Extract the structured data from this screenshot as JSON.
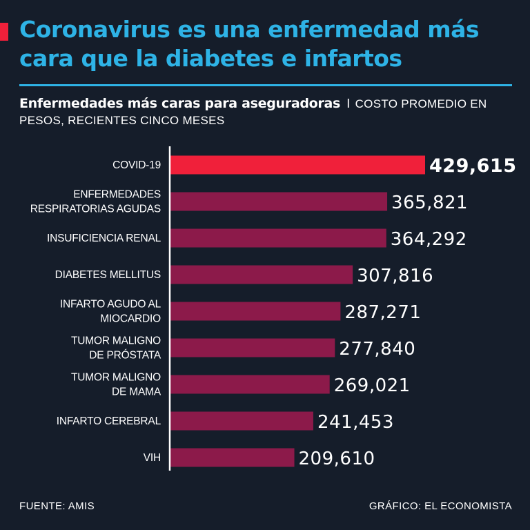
{
  "header": {
    "title": "Coronavirus es una enfermedad más cara que la diabetes e infartos",
    "subtitle_bold": "Enfermedades más caras para aseguradoras",
    "subtitle_separator": "I",
    "subtitle_rest": "COSTO PROMEDIO EN PESOS, RECIENTES CINCO MESES"
  },
  "chart_data": {
    "type": "bar",
    "orientation": "horizontal",
    "title": "Enfermedades más caras para aseguradoras",
    "xlabel": "Costo promedio en pesos",
    "ylabel": "",
    "xlim": [
      0,
      429615
    ],
    "categories": [
      "COVID-19",
      "ENFERMEDADES RESPIRATORIAS AGUDAS",
      "INSUFICIENCIA RENAL",
      "DIABETES MELLITUS",
      "INFARTO AGUDO AL MIOCARDIO",
      "TUMOR MALIGNO DE PRÓSTATA",
      "TUMOR MALIGNO DE MAMA",
      "INFARTO CEREBRAL",
      "VIH"
    ],
    "category_lines": [
      [
        "COVID-19"
      ],
      [
        "ENFERMEDADES",
        "RESPIRATORIAS AGUDAS"
      ],
      [
        "INSUFICIENCIA RENAL"
      ],
      [
        "DIABETES MELLITUS"
      ],
      [
        "INFARTO AGUDO AL",
        "MIOCARDIO"
      ],
      [
        "TUMOR MALIGNO",
        "DE PRÓSTATA"
      ],
      [
        "TUMOR MALIGNO",
        "DE MAMA"
      ],
      [
        "INFARTO CEREBRAL"
      ],
      [
        "VIH"
      ]
    ],
    "values": [
      429615,
      365821,
      364292,
      307816,
      287271,
      277840,
      269021,
      241453,
      209610
    ],
    "value_labels": [
      "429,615",
      "365,821",
      "364,292",
      "307,816",
      "287,271",
      "277,840",
      "269,021",
      "241,453",
      "209,610"
    ],
    "highlight_index": 0,
    "colors": {
      "highlight": "#f0203a",
      "bar": "#8c1a4a",
      "axis": "#ffffff",
      "label": "#ffffff"
    }
  },
  "footer": {
    "source": "FUENTE: AMIS",
    "credit": "GRÁFICO: EL ECONOMISTA"
  }
}
